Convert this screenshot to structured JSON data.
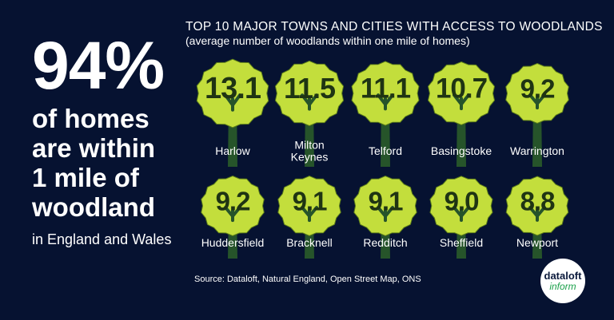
{
  "headline": {
    "stat": "94%",
    "lines": [
      "of homes",
      "are within",
      "1 mile of",
      "woodland"
    ],
    "region": "in England and Wales"
  },
  "chart_data": {
    "type": "bar",
    "title": "TOP 10 MAJOR TOWNS AND CITIES WITH ACCESS TO WOODLANDS",
    "subtitle": "(average number of woodlands within one mile of homes)",
    "categories": [
      "Harlow",
      "Milton Keynes",
      "Telford",
      "Basingstoke",
      "Warrington",
      "Huddersfield",
      "Bracknell",
      "Redditch",
      "Sheffield",
      "Newport"
    ],
    "category_lines": [
      [
        "Harlow"
      ],
      [
        "Milton",
        "Keynes"
      ],
      [
        "Telford"
      ],
      [
        "Basingstoke"
      ],
      [
        "Warrington"
      ],
      [
        "Huddersfield"
      ],
      [
        "Bracknell"
      ],
      [
        "Redditch"
      ],
      [
        "Sheffield"
      ],
      [
        "Newport"
      ]
    ],
    "values": [
      13.1,
      11.5,
      11.1,
      10.7,
      9.2,
      9.2,
      9.1,
      9.1,
      9.0,
      8.8
    ],
    "labels": [
      "13.1",
      "11.5",
      "11.1",
      "10.7",
      "9.2",
      "9.2",
      "9.1",
      "9.1",
      "9.0",
      "8.8"
    ]
  },
  "colors": {
    "background": "#061231",
    "tree_crown": "#c3de3c",
    "tree_crown_outline": "#5c7d1a",
    "tree_trunk": "#26542a",
    "value_text": "#1f3413"
  },
  "source": "Source: Dataloft, Natural England, Open Street Map, ONS",
  "logo": {
    "top": "dataloft",
    "bottom": "inform"
  }
}
